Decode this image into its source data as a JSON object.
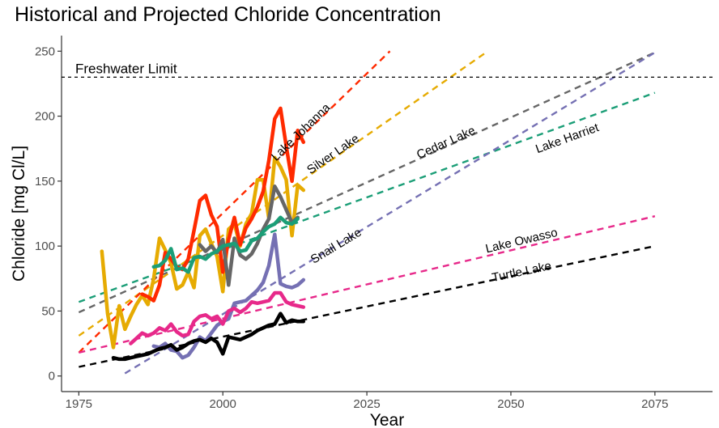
{
  "chart_data": {
    "type": "line",
    "title": "Historical and Projected Chloride Concentration",
    "xlabel": "Year",
    "ylabel": "Chloride [mg Cl/L]",
    "xlim": [
      1972,
      2085
    ],
    "ylim": [
      -12,
      262
    ],
    "xticks": [
      1975,
      2000,
      2025,
      2050,
      2075
    ],
    "yticks": [
      0,
      50,
      100,
      150,
      200,
      250
    ],
    "grid": false,
    "reference_line": {
      "label": "Freshwater Limit",
      "y": 230,
      "color": "#000000"
    },
    "series": [
      {
        "name": "Silver Lake",
        "color": "#E6AB02",
        "x": [
          1979,
          1980,
          1981,
          1982,
          1983,
          1984,
          1985,
          1986,
          1987,
          1988,
          1989,
          1990,
          1991,
          1992,
          1993,
          1994,
          1995,
          1996,
          1997,
          1998,
          1999,
          2000,
          2001,
          2002,
          2003,
          2004,
          2005,
          2006,
          2007,
          2008,
          2009,
          2010,
          2011,
          2012,
          2013,
          2014
        ],
        "y": [
          96,
          48,
          22,
          54,
          36,
          46,
          55,
          62,
          55,
          75,
          106,
          97,
          87,
          67,
          70,
          80,
          68,
          108,
          113,
          102,
          92,
          65,
          113,
          117,
          100,
          117,
          125,
          151,
          151,
          121,
          168,
          161,
          151,
          108,
          147,
          143
        ],
        "trend": {
          "x": [
            1975,
            2046
          ],
          "y": [
            31,
            250
          ]
        },
        "label": "Silver Lake"
      },
      {
        "name": "Lake Johanna",
        "color": "#FF2A00",
        "x": [
          1975,
          1980,
          1985,
          1986,
          1987,
          1988,
          1989,
          1990,
          1991,
          1992,
          1993,
          1994,
          1995,
          1996,
          1997,
          1998,
          1999,
          2000,
          2001,
          2002,
          2003,
          2004,
          2005,
          2006,
          2007,
          2008,
          2009,
          2010,
          2011,
          2012,
          2013,
          2014
        ],
        "y": [
          null,
          null,
          null,
          63,
          61,
          58,
          70,
          95,
          90,
          84,
          82,
          90,
          112,
          135,
          139,
          124,
          115,
          80,
          105,
          122,
          101,
          114,
          121,
          130,
          142,
          166,
          198,
          206,
          177,
          150,
          189,
          180
        ],
        "trend": {
          "x": [
            1975,
            2029
          ],
          "y": [
            18,
            250
          ]
        },
        "label": "Lake Johanna"
      },
      {
        "name": "Cedar Lake",
        "color": "#666666",
        "x": [
          1996,
          1997,
          1998,
          1999,
          2000,
          2001,
          2002,
          2003,
          2004,
          2005,
          2006,
          2007,
          2008,
          2009,
          2010,
          2011,
          2012,
          2013
        ],
        "y": [
          101,
          96,
          100,
          95,
          105,
          70,
          106,
          93,
          90,
          94,
          102,
          113,
          121,
          146,
          138,
          128,
          118,
          122
        ],
        "trend": {
          "x": [
            1975,
            2075
          ],
          "y": [
            49,
            249
          ]
        },
        "label": "Cedar Lake"
      },
      {
        "name": "Lake Harriet",
        "color": "#1B9E77",
        "x": [
          1988,
          1989,
          1990,
          1991,
          1992,
          1993,
          1994,
          1995,
          1996,
          1997,
          1998,
          1999,
          2000,
          2001,
          2002,
          2003,
          2004,
          2005,
          2006,
          2007,
          2008,
          2009,
          2010,
          2011,
          2012,
          2013
        ],
        "y": [
          84,
          85,
          89,
          98,
          82,
          83,
          80,
          91,
          92,
          90,
          94,
          96,
          100,
          101,
          102,
          96,
          97,
          104,
          106,
          111,
          115,
          117,
          122,
          118,
          117,
          121
        ],
        "trend": {
          "x": [
            1975,
            2075
          ],
          "y": [
            57,
            218
          ]
        },
        "label": "Lake Harriet"
      },
      {
        "name": "Snail Lake",
        "color": "#7570B3",
        "x": [
          1988,
          1989,
          1990,
          1991,
          1992,
          1993,
          1994,
          1995,
          1996,
          1997,
          1998,
          1999,
          2000,
          2001,
          2002,
          2003,
          2004,
          2005,
          2006,
          2007,
          2008,
          2009,
          2010,
          2011,
          2012,
          2013,
          2014
        ],
        "y": [
          23,
          22,
          25,
          20,
          19,
          14,
          16,
          22,
          30,
          27,
          33,
          39,
          42,
          44,
          56,
          57,
          58,
          62,
          66,
          72,
          85,
          109,
          71,
          69,
          68,
          70,
          74
        ],
        "trend": {
          "x": [
            1983,
            2075
          ],
          "y": [
            2,
            249
          ]
        },
        "label": "Snail Lake"
      },
      {
        "name": "Lake Owasso",
        "color": "#E7298A",
        "x": [
          1984,
          1985,
          1986,
          1987,
          1988,
          1989,
          1990,
          1991,
          1992,
          1993,
          1994,
          1995,
          1996,
          1997,
          1998,
          1999,
          2000,
          2001,
          2002,
          2003,
          2004,
          2005,
          2006,
          2007,
          2008,
          2009,
          2010,
          2011,
          2012,
          2013,
          2014
        ],
        "y": [
          25,
          29,
          33,
          31,
          33,
          37,
          35,
          40,
          34,
          31,
          32,
          42,
          46,
          47,
          44,
          46,
          40,
          50,
          52,
          49,
          52,
          57,
          56,
          57,
          58,
          64,
          64,
          57,
          55,
          54,
          53
        ],
        "trend": {
          "x": [
            1975,
            2075
          ],
          "y": [
            18,
            123
          ]
        },
        "label": "Lake Owasso"
      },
      {
        "name": "Turtle Lake",
        "color": "#000000",
        "x": [
          1981,
          1982,
          1983,
          1984,
          1985,
          1986,
          1987,
          1988,
          1989,
          1990,
          1991,
          1992,
          1993,
          1994,
          1995,
          1996,
          1997,
          1998,
          1999,
          2000,
          2001,
          2002,
          2003,
          2004,
          2005,
          2006,
          2007,
          2008,
          2009,
          2010,
          2011,
          2012,
          2013,
          2014
        ],
        "y": [
          14,
          13,
          13,
          14,
          15,
          16,
          17,
          19,
          21,
          22,
          24,
          20,
          22,
          25,
          27,
          28,
          26,
          29,
          26,
          17,
          30,
          29,
          28,
          30,
          32,
          35,
          37,
          39,
          40,
          48,
          41,
          43,
          42,
          42
        ],
        "trend": {
          "x": [
            1975,
            2075
          ],
          "y": [
            7,
            100
          ]
        },
        "label": "Turtle Lake"
      }
    ]
  }
}
